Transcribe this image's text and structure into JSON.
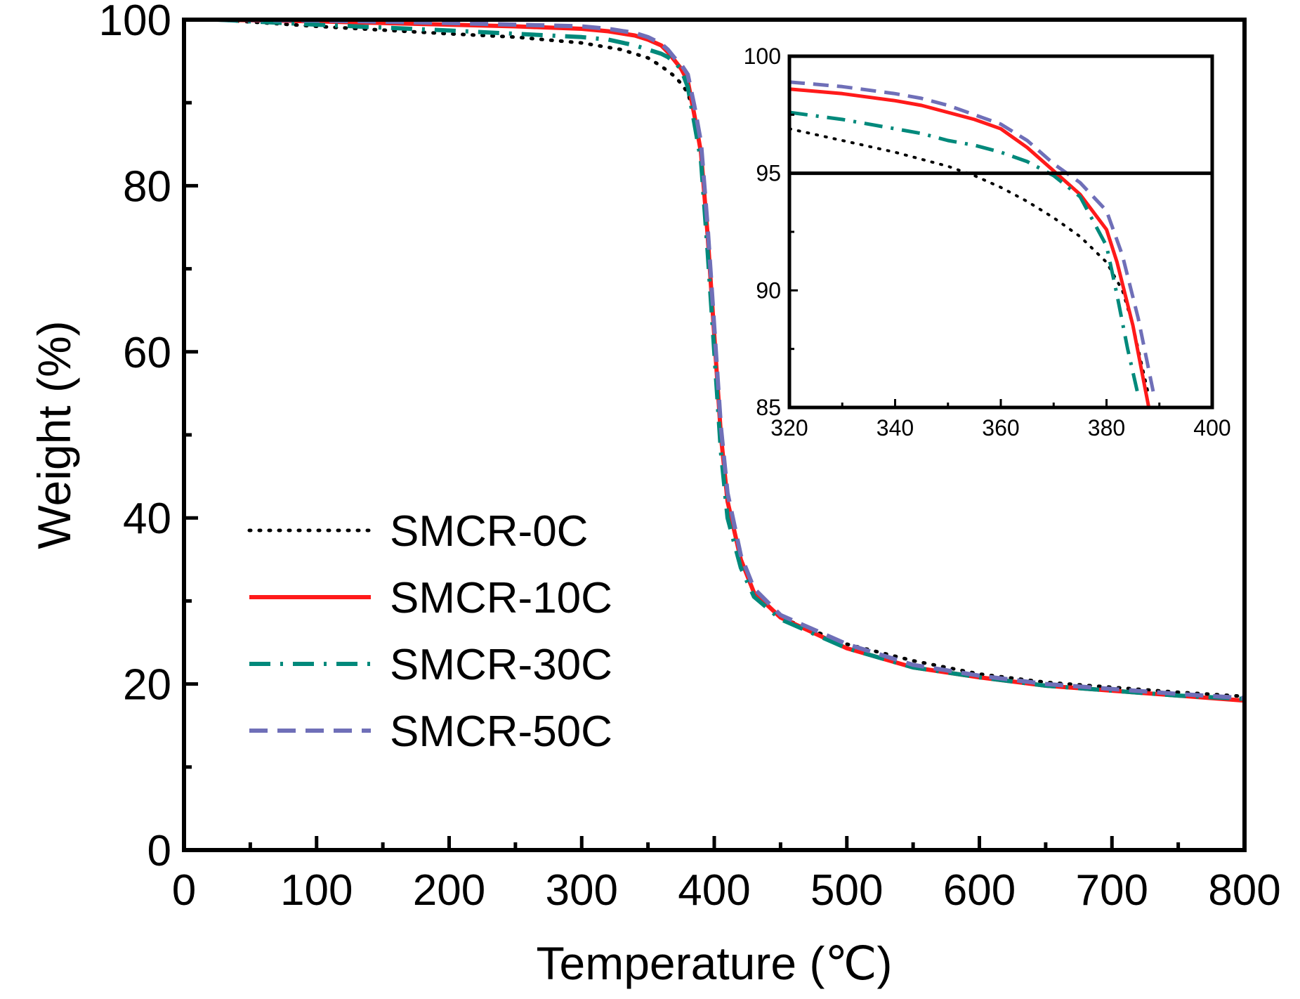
{
  "chart_data": [
    {
      "type": "line",
      "xlabel": "Temperature (℃)",
      "ylabel": "Weight (%)",
      "xlim": [
        0,
        800
      ],
      "ylim": [
        0,
        100
      ],
      "xticks": [
        0,
        100,
        200,
        300,
        400,
        500,
        600,
        700,
        800
      ],
      "yticks": [
        0,
        20,
        40,
        60,
        80,
        100
      ],
      "xtick_labels": [
        "0",
        "100",
        "200",
        "300",
        "400",
        "500",
        "600",
        "700",
        "800"
      ],
      "ytick_labels": [
        "0",
        "20",
        "40",
        "60",
        "80",
        "100"
      ],
      "grid": false,
      "legend_position": "left-center",
      "series": [
        {
          "name": "SMCR-0C",
          "color": "#000000",
          "style": "dotted",
          "x": [
            25,
            100,
            200,
            250,
            300,
            330,
            350,
            360,
            370,
            375,
            380,
            385,
            390,
            395,
            400,
            405,
            410,
            420,
            430,
            450,
            500,
            550,
            600,
            650,
            700,
            750,
            800
          ],
          "y": [
            100,
            99.2,
            98.3,
            97.9,
            97.2,
            96.4,
            95.4,
            94.4,
            93.2,
            92.3,
            91.2,
            88.5,
            84,
            74,
            62,
            50,
            42,
            35,
            31,
            28,
            24.8,
            22.8,
            21.2,
            20.2,
            19.6,
            19.0,
            18.5
          ]
        },
        {
          "name": "SMCR-10C",
          "color": "#ff1a1a",
          "style": "solid",
          "x": [
            25,
            100,
            200,
            250,
            300,
            320,
            340,
            350,
            360,
            365,
            370,
            375,
            380,
            385,
            390,
            395,
            400,
            405,
            410,
            420,
            430,
            450,
            500,
            550,
            600,
            650,
            700,
            750,
            800
          ],
          "y": [
            100,
            99.8,
            99.4,
            99.2,
            98.9,
            98.6,
            98.1,
            97.6,
            96.9,
            96.1,
            95.1,
            94.1,
            92.6,
            88.5,
            84,
            74,
            62,
            50,
            42,
            35,
            31,
            28,
            24.3,
            22.0,
            20.8,
            19.8,
            19.2,
            18.6,
            18.0
          ]
        },
        {
          "name": "SMCR-30C",
          "color": "#00897b",
          "style": "dashdot",
          "x": [
            25,
            100,
            200,
            250,
            300,
            320,
            340,
            350,
            360,
            365,
            370,
            375,
            380,
            385,
            390,
            395,
            400,
            405,
            410,
            420,
            430,
            450,
            500,
            550,
            600,
            650,
            700,
            750,
            800
          ],
          "y": [
            100,
            99.4,
            98.7,
            98.3,
            97.9,
            97.6,
            96.9,
            96.4,
            95.9,
            95.5,
            94.9,
            94.0,
            91.9,
            87.5,
            83,
            72,
            60,
            48,
            40,
            34,
            30.5,
            27.8,
            24.3,
            22.0,
            20.8,
            19.8,
            19.2,
            18.6,
            18.2
          ]
        },
        {
          "name": "SMCR-50C",
          "color": "#6f6fb8",
          "style": "dashed",
          "x": [
            25,
            100,
            200,
            250,
            300,
            320,
            340,
            350,
            360,
            365,
            370,
            375,
            380,
            385,
            390,
            395,
            400,
            405,
            410,
            420,
            430,
            450,
            500,
            550,
            600,
            650,
            700,
            750,
            800
          ],
          "y": [
            100,
            99.9,
            99.6,
            99.4,
            99.2,
            98.9,
            98.4,
            97.9,
            97.1,
            96.4,
            95.4,
            94.6,
            93.4,
            89.6,
            85.2,
            75,
            63,
            51,
            43,
            35.5,
            31.5,
            28.3,
            24.8,
            22.3,
            21.0,
            20.0,
            19.4,
            18.8,
            18.3
          ]
        }
      ]
    },
    {
      "type": "line",
      "role": "inset",
      "xlim": [
        320,
        400
      ],
      "ylim": [
        85,
        100
      ],
      "xticks": [
        320,
        340,
        360,
        380,
        400
      ],
      "yticks": [
        85,
        90,
        95,
        100
      ],
      "xtick_labels": [
        "320",
        "340",
        "360",
        "380",
        "400"
      ],
      "ytick_labels": [
        "85",
        "90",
        "95",
        "100"
      ],
      "reference_line_y": 95,
      "series": [
        {
          "name": "SMCR-0C",
          "color": "#000000",
          "style": "dotted",
          "x": [
            320,
            330,
            340,
            350,
            355,
            360,
            365,
            370,
            375,
            380,
            383,
            385,
            388
          ],
          "y": [
            96.9,
            96.4,
            95.9,
            95.3,
            94.9,
            94.4,
            93.8,
            93.1,
            92.3,
            91.2,
            90.0,
            88.5,
            85.5
          ]
        },
        {
          "name": "SMCR-10C",
          "color": "#ff1a1a",
          "style": "solid",
          "x": [
            320,
            330,
            340,
            345,
            350,
            355,
            360,
            365,
            370,
            375,
            380,
            382,
            385,
            388
          ],
          "y": [
            98.6,
            98.4,
            98.1,
            97.9,
            97.6,
            97.3,
            96.9,
            96.1,
            95.1,
            94.1,
            92.6,
            91.2,
            88.5,
            85.0
          ]
        },
        {
          "name": "SMCR-30C",
          "color": "#00897b",
          "style": "dashdot",
          "x": [
            320,
            330,
            340,
            345,
            350,
            355,
            360,
            365,
            370,
            375,
            380,
            382,
            384,
            386
          ],
          "y": [
            97.6,
            97.3,
            96.9,
            96.7,
            96.4,
            96.2,
            95.9,
            95.5,
            94.9,
            94.0,
            91.9,
            89.8,
            87.5,
            85.5
          ]
        },
        {
          "name": "SMCR-50C",
          "color": "#6f6fb8",
          "style": "dashed",
          "x": [
            320,
            330,
            340,
            345,
            350,
            355,
            360,
            365,
            370,
            375,
            380,
            383,
            386,
            389
          ],
          "y": [
            98.9,
            98.7,
            98.4,
            98.2,
            97.9,
            97.5,
            97.1,
            96.4,
            95.4,
            94.6,
            93.4,
            91.5,
            88.8,
            85.5
          ]
        }
      ]
    }
  ]
}
